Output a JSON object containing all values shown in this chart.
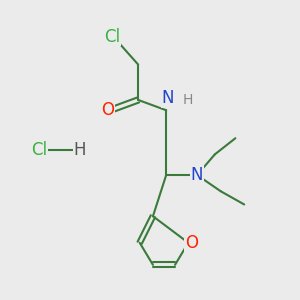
{
  "bg_color": "#ebebeb",
  "bond_color": "#3a7a3a",
  "atom_colors": {
    "Cl": "#3cb043",
    "O": "#ff2200",
    "N": "#2244cc",
    "H": "#888888",
    "C": "#3a7a3a"
  },
  "font_size_atom": 12,
  "font_size_small": 10,
  "lw": 1.5
}
